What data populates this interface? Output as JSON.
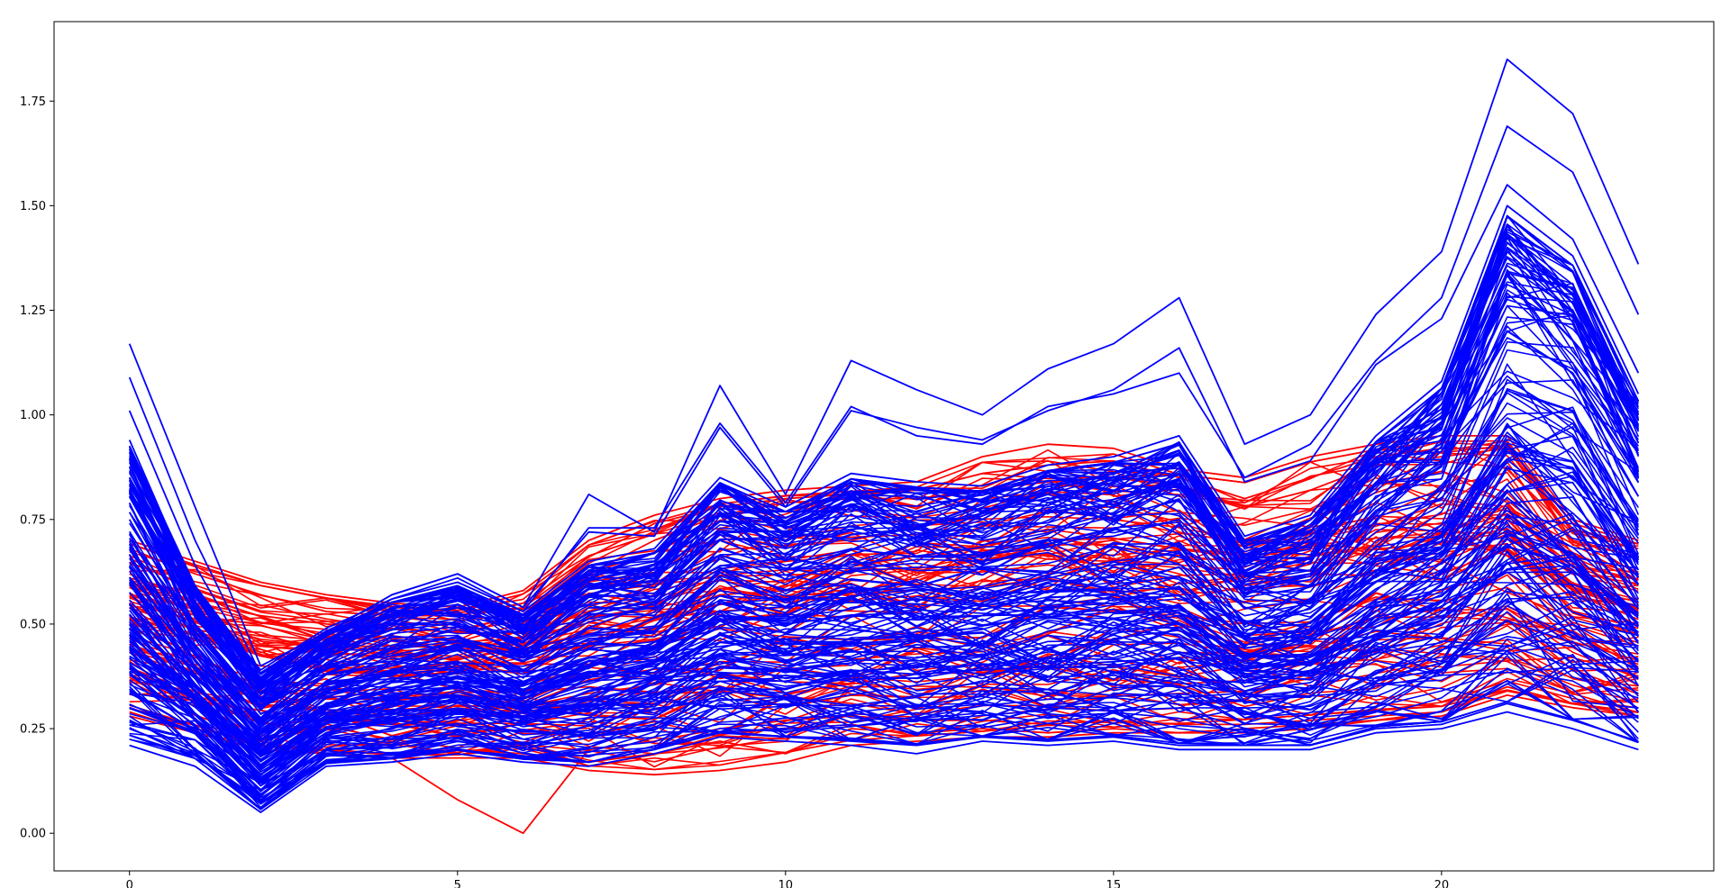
{
  "chart_data": {
    "type": "line",
    "title": "",
    "xlabel": "",
    "ylabel": "",
    "xlim": [
      -1.15,
      24.15
    ],
    "ylim": [
      -0.09,
      1.94
    ],
    "grid": false,
    "legend": "none",
    "xticks": [
      0,
      5,
      10,
      15,
      20
    ],
    "xtick_labels": [
      "0",
      "5",
      "10",
      "15",
      "20"
    ],
    "yticks": [
      0.0,
      0.25,
      0.5,
      0.75,
      1.0,
      1.25,
      1.5,
      1.75
    ],
    "ytick_labels": [
      "0.00",
      "0.25",
      "0.50",
      "0.75",
      "1.00",
      "1.25",
      "1.50",
      "1.75"
    ],
    "x": [
      0,
      1,
      2,
      3,
      4,
      5,
      6,
      7,
      8,
      9,
      10,
      11,
      12,
      13,
      14,
      15,
      16,
      17,
      18,
      19,
      20,
      21,
      22,
      23
    ],
    "groups": [
      {
        "color": "#ff0000",
        "envelope_low": [
          0.29,
          0.25,
          0.2,
          0.19,
          0.18,
          0.18,
          0.18,
          0.15,
          0.14,
          0.15,
          0.18,
          0.21,
          0.22,
          0.23,
          0.23,
          0.24,
          0.25,
          0.26,
          0.27,
          0.28,
          0.29,
          0.33,
          0.3,
          0.28
        ],
        "envelope_high": [
          0.7,
          0.65,
          0.6,
          0.57,
          0.55,
          0.54,
          0.58,
          0.7,
          0.76,
          0.8,
          0.82,
          0.83,
          0.84,
          0.9,
          0.93,
          0.92,
          0.87,
          0.85,
          0.9,
          0.93,
          0.95,
          0.95,
          0.75,
          0.7
        ],
        "series": [
          {
            "values": [
              0.7,
              0.65,
              0.6,
              0.57,
              0.55,
              0.54,
              0.58,
              0.7,
              0.76,
              0.8,
              0.82,
              0.83,
              0.84,
              0.9,
              0.93,
              0.92,
              0.87,
              0.85,
              0.9,
              0.93,
              0.95,
              0.95,
              0.75,
              0.7
            ]
          },
          {
            "values": [
              0.68,
              0.62,
              0.57,
              0.53,
              0.52,
              0.52,
              0.55,
              0.66,
              0.74,
              0.78,
              0.8,
              0.81,
              0.82,
              0.86,
              0.88,
              0.89,
              0.85,
              0.8,
              0.85,
              0.9,
              0.92,
              0.92,
              0.72,
              0.68
            ]
          },
          {
            "values": [
              0.3,
              0.25,
              0.22,
              0.19,
              0.18,
              0.08,
              0.0,
              0.2,
              0.22,
              0.25,
              0.27,
              0.28,
              0.27,
              0.27,
              0.26,
              0.27,
              0.26,
              0.26,
              0.27,
              0.28,
              0.29,
              0.34,
              0.31,
              0.29
            ]
          },
          {
            "values": [
              0.29,
              0.24,
              0.2,
              0.19,
              0.18,
              0.18,
              0.18,
              0.15,
              0.14,
              0.15,
              0.17,
              0.21,
              0.22,
              0.23,
              0.23,
              0.24,
              0.24,
              0.25,
              0.26,
              0.27,
              0.28,
              0.33,
              0.3,
              0.28
            ]
          },
          {
            "values": [
              0.28,
              0.24,
              0.21,
              0.2,
              0.19,
              0.2,
              0.19,
              0.17,
              0.19,
              0.22,
              0.19,
              0.25,
              0.24,
              0.25,
              0.24,
              0.25,
              0.24,
              0.24,
              0.25,
              0.27,
              0.29,
              0.35,
              0.31,
              0.28
            ]
          },
          {
            "values": [
              0.62,
              0.55,
              0.52,
              0.5,
              0.49,
              0.48,
              0.51,
              0.62,
              0.7,
              0.76,
              0.79,
              0.8,
              0.8,
              0.82,
              0.84,
              0.85,
              0.83,
              0.78,
              0.82,
              0.88,
              0.9,
              0.92,
              0.7,
              0.66
            ]
          }
        ]
      },
      {
        "color": "#0000ff",
        "envelope_low": [
          0.21,
          0.17,
          0.05,
          0.16,
          0.17,
          0.19,
          0.17,
          0.16,
          0.19,
          0.23,
          0.22,
          0.21,
          0.2,
          0.22,
          0.21,
          0.22,
          0.2,
          0.2,
          0.2,
          0.24,
          0.25,
          0.29,
          0.25,
          0.2
        ],
        "envelope_high": [
          0.94,
          0.6,
          0.39,
          0.49,
          0.56,
          0.6,
          0.53,
          0.65,
          0.68,
          0.85,
          0.78,
          0.86,
          0.84,
          0.83,
          0.88,
          0.9,
          0.95,
          0.71,
          0.76,
          0.95,
          1.08,
          1.5,
          1.38,
          1.05
        ],
        "series": [
          {
            "values": [
              1.17,
              0.78,
              0.4,
              0.48,
              0.57,
              0.62,
              0.54,
              0.81,
              0.72,
              1.07,
              0.81,
              1.13,
              1.06,
              1.0,
              1.11,
              1.17,
              1.28,
              0.93,
              1.0,
              1.24,
              1.39,
              1.85,
              1.72,
              1.36
            ]
          },
          {
            "values": [
              1.09,
              0.7,
              0.38,
              0.47,
              0.56,
              0.61,
              0.53,
              0.73,
              0.73,
              0.98,
              0.79,
              1.02,
              0.95,
              0.93,
              1.02,
              1.05,
              1.1,
              0.85,
              0.93,
              1.13,
              1.28,
              1.69,
              1.58,
              1.24
            ]
          },
          {
            "values": [
              1.01,
              0.64,
              0.37,
              0.48,
              0.57,
              0.62,
              0.54,
              0.72,
              0.71,
              0.97,
              0.78,
              1.01,
              0.97,
              0.94,
              1.01,
              1.06,
              1.16,
              0.84,
              0.89,
              1.12,
              1.23,
              1.55,
              1.42,
              1.1
            ]
          },
          {
            "values": [
              0.94,
              0.58,
              0.39,
              0.49,
              0.56,
              0.6,
              0.53,
              0.65,
              0.68,
              0.85,
              0.78,
              0.86,
              0.84,
              0.83,
              0.88,
              0.9,
              0.95,
              0.71,
              0.76,
              0.95,
              1.08,
              1.5,
              1.38,
              1.05
            ]
          },
          {
            "values": [
              0.75,
              0.48,
              0.3,
              0.38,
              0.44,
              0.47,
              0.42,
              0.52,
              0.56,
              0.7,
              0.64,
              0.68,
              0.66,
              0.66,
              0.7,
              0.71,
              0.75,
              0.58,
              0.62,
              0.78,
              0.88,
              1.2,
              1.1,
              0.85
            ]
          },
          {
            "values": [
              0.55,
              0.35,
              0.22,
              0.3,
              0.34,
              0.37,
              0.34,
              0.4,
              0.44,
              0.55,
              0.5,
              0.52,
              0.51,
              0.52,
              0.54,
              0.55,
              0.57,
              0.45,
              0.48,
              0.6,
              0.68,
              0.95,
              0.85,
              0.66
            ]
          },
          {
            "values": [
              0.4,
              0.27,
              0.14,
              0.24,
              0.27,
              0.29,
              0.26,
              0.3,
              0.33,
              0.41,
              0.37,
              0.39,
              0.38,
              0.39,
              0.4,
              0.41,
              0.42,
              0.34,
              0.36,
              0.45,
              0.51,
              0.72,
              0.63,
              0.48
            ]
          },
          {
            "values": [
              0.25,
              0.19,
              0.07,
              0.17,
              0.18,
              0.2,
              0.18,
              0.17,
              0.2,
              0.24,
              0.23,
              0.22,
              0.21,
              0.23,
              0.22,
              0.23,
              0.21,
              0.21,
              0.21,
              0.25,
              0.26,
              0.31,
              0.27,
              0.22
            ]
          },
          {
            "values": [
              0.21,
              0.16,
              0.05,
              0.16,
              0.17,
              0.19,
              0.17,
              0.16,
              0.19,
              0.23,
              0.22,
              0.21,
              0.19,
              0.22,
              0.21,
              0.22,
              0.2,
              0.2,
              0.2,
              0.24,
              0.25,
              0.29,
              0.25,
              0.2
            ]
          }
        ]
      }
    ]
  }
}
